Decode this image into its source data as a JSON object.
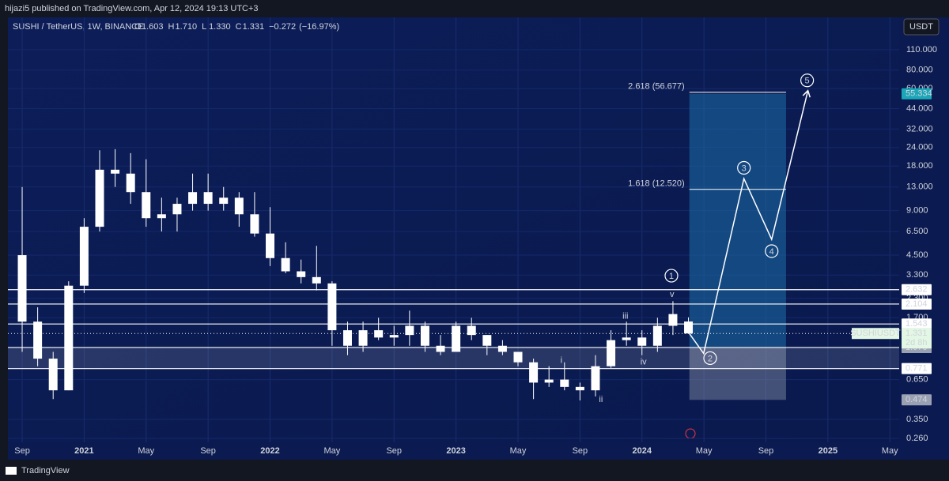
{
  "header": {
    "publisher": "hijazi5 published on TradingView.com, Apr 12, 2024 19:13 UTC+3",
    "brand": "TradingView"
  },
  "chart_data": {
    "type": "candlestick",
    "symbol": "SUSHI / TetherUS, 1W, BINANCE",
    "currency": "USDT",
    "ohlc_labels": [
      "O",
      "H",
      "L",
      "C"
    ],
    "ohlc": [
      {
        "value": 1.603,
        "label": "1.603"
      },
      {
        "value": 1.71,
        "label": "1.710"
      },
      {
        "value": 1.33,
        "label": "1.330"
      },
      {
        "value": 1.331,
        "label": "1.331"
      }
    ],
    "change": {
      "value": -0.272,
      "label": "−0.272"
    },
    "change_pct": {
      "value": -16.97,
      "label": "(−16.97%)"
    },
    "candle_color": "#ffffff",
    "x": [
      0,
      1,
      2,
      3,
      4,
      5,
      6,
      7,
      8,
      9,
      10,
      11,
      12,
      13,
      14,
      15,
      16,
      17,
      18,
      19,
      20,
      21,
      22,
      23,
      24,
      25,
      26,
      27,
      28,
      29,
      30,
      31,
      32,
      33,
      34,
      35,
      36,
      37,
      38,
      39,
      40,
      41,
      42,
      43
    ],
    "open": [
      4.5,
      1.6,
      0.9,
      0.55,
      2.8,
      7,
      17,
      16,
      12,
      8,
      8.5,
      10,
      12,
      10,
      11,
      8.5,
      6.3,
      4.3,
      3.5,
      3.2,
      2.9,
      1.4,
      1.1,
      1.4,
      1.25,
      1.3,
      1.5,
      1.1,
      1,
      1.5,
      1.3,
      1.1,
      1,
      0.85,
      0.62,
      0.65,
      0.58,
      0.55,
      0.8,
      1.2,
      1.25,
      1.1,
      1.5,
      1.603
    ],
    "high": [
      13,
      2,
      1,
      3,
      8,
      23,
      23.4,
      22,
      20,
      11,
      11,
      16,
      16,
      13,
      12,
      12,
      9.5,
      5.5,
      4.2,
      5.2,
      3,
      1.6,
      1.6,
      1.7,
      1.5,
      1.9,
      1.6,
      1.3,
      1.6,
      1.7,
      1.3,
      1.2,
      1,
      0.9,
      0.8,
      0.85,
      0.62,
      0.95,
      1.4,
      1.6,
      1.4,
      1.7,
      2.2,
      1.71
    ],
    "low": [
      1,
      0.8,
      0.48,
      0.55,
      2.5,
      6.5,
      13,
      10,
      7,
      6.5,
      6.5,
      9,
      9,
      9,
      7,
      6,
      3.8,
      3.4,
      2.9,
      2.6,
      1.1,
      0.95,
      1,
      1.2,
      1.1,
      1.1,
      1,
      0.95,
      1,
      1.2,
      0.95,
      0.95,
      0.8,
      0.48,
      0.58,
      0.55,
      0.47,
      0.5,
      0.78,
      1.1,
      0.95,
      1,
      1.3,
      1.33
    ],
    "close": [
      1.6,
      0.9,
      0.55,
      2.8,
      7,
      17,
      16,
      12,
      8,
      8.5,
      10,
      12,
      10,
      11,
      8.5,
      6.3,
      4.3,
      3.5,
      3.2,
      2.9,
      1.4,
      1.1,
      1.4,
      1.25,
      1.3,
      1.5,
      1.1,
      1,
      1.5,
      1.3,
      1.1,
      1,
      0.85,
      0.62,
      0.65,
      0.58,
      0.55,
      0.8,
      1.2,
      1.25,
      1.1,
      1.5,
      1.8,
      1.331
    ],
    "xlim": [
      -0.92,
      56.6
    ],
    "xticks": [
      {
        "value": 0,
        "label": "Sep"
      },
      {
        "value": 4,
        "label": "2021"
      },
      {
        "value": 8,
        "label": "May"
      },
      {
        "value": 12,
        "label": "Sep"
      },
      {
        "value": 16,
        "label": "2022"
      },
      {
        "value": 20,
        "label": "May"
      },
      {
        "value": 24,
        "label": "Sep"
      },
      {
        "value": 28,
        "label": "2023"
      },
      {
        "value": 32,
        "label": "May"
      },
      {
        "value": 36,
        "label": "Sep"
      },
      {
        "value": 40,
        "label": "2024"
      },
      {
        "value": 44,
        "label": "May"
      },
      {
        "value": 48,
        "label": "Sep"
      },
      {
        "value": 52,
        "label": "2025"
      },
      {
        "value": 56,
        "label": "May"
      }
    ],
    "ylim": [
      0.245,
      181.7
    ],
    "log_y": true,
    "yticks": [
      {
        "value": 110,
        "label": "110.000"
      },
      {
        "value": 80,
        "label": "80.000"
      },
      {
        "value": 60,
        "label": "60.000"
      },
      {
        "value": 44,
        "label": "44.000"
      },
      {
        "value": 32,
        "label": "32.000"
      },
      {
        "value": 24,
        "label": "24.000"
      },
      {
        "value": 18,
        "label": "18.000"
      },
      {
        "value": 13,
        "label": "13.000"
      },
      {
        "value": 9,
        "label": "9.000"
      },
      {
        "value": 6.5,
        "label": "6.500"
      },
      {
        "value": 4.5,
        "label": "4.500"
      },
      {
        "value": 3.3,
        "label": "3.300"
      },
      {
        "value": 2.3,
        "label": "2.300"
      },
      {
        "value": 1.7,
        "label": "1.700"
      },
      {
        "value": 0.65,
        "label": "0.650"
      },
      {
        "value": 0.35,
        "label": "0.350"
      },
      {
        "value": 0.26,
        "label": "0.260"
      }
    ],
    "levels": [
      2.632,
      2.104,
      1.543,
      1.071,
      0.771
    ],
    "last_price": {
      "value": 1.331,
      "name": "SUSHIUSDT",
      "countdown": "2d 8h"
    },
    "position": {
      "x": [
        43.06,
        49.3
      ],
      "entry": {
        "value": 1.07,
        "label": "1.070"
      },
      "target": 55.334,
      "stop": 0.474
    },
    "fibs": [
      {
        "value": 56.677,
        "label": "2.618 (56.677)"
      },
      {
        "value": 12.52,
        "label": "1.618 (12.520)"
      }
    ],
    "projection": {
      "x": [
        43.06,
        43.98,
        46.58,
        48.37,
        50.71
      ],
      "values": [
        1.33,
        0.976,
        14.8,
        5.75,
        58.2
      ]
    },
    "waves": [
      {
        "label": "1",
        "x": 41.9,
        "y": 3.27,
        "circled": true
      },
      {
        "label": "2",
        "x": 44.4,
        "y": 0.907,
        "circled": true
      },
      {
        "label": "3",
        "x": 46.58,
        "y": 17.5,
        "circled": true
      },
      {
        "label": "4",
        "x": 48.37,
        "y": 4.79,
        "circled": true
      },
      {
        "label": "5",
        "x": 50.66,
        "y": 68.2,
        "circled": true
      },
      {
        "label": "i",
        "x": 34.8,
        "y": 0.885,
        "circled": false
      },
      {
        "label": "ii",
        "x": 37.35,
        "y": 0.48,
        "circled": false
      },
      {
        "label": "iii",
        "x": 38.93,
        "y": 1.76,
        "circled": false
      },
      {
        "label": "iv",
        "x": 40.1,
        "y": 0.864,
        "circled": false
      },
      {
        "label": "v",
        "x": 41.94,
        "y": 2.47,
        "circled": false
      }
    ]
  }
}
